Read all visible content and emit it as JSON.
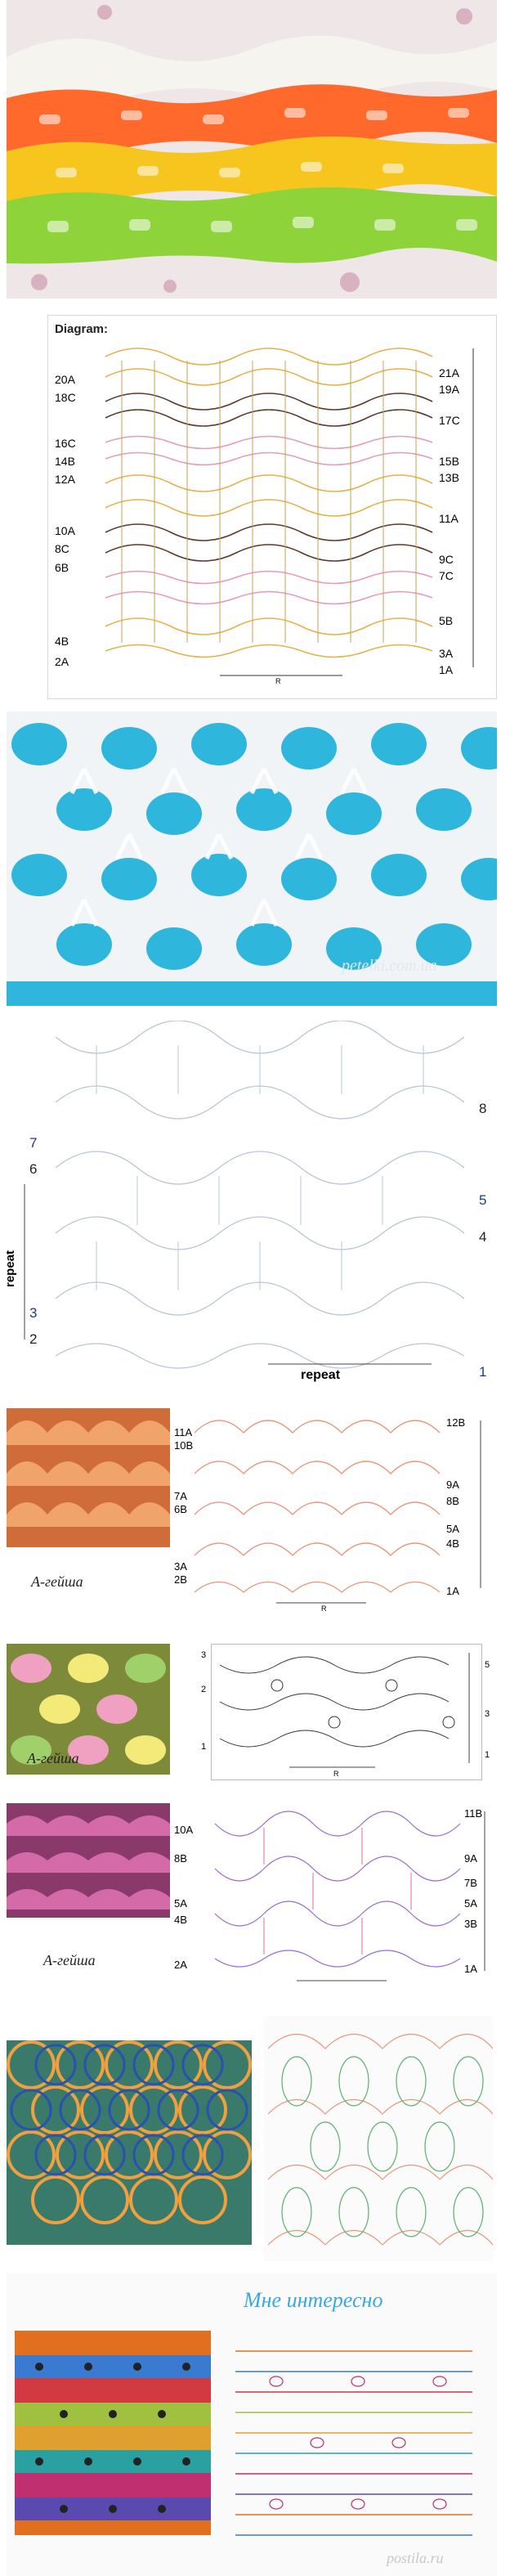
{
  "section2": {
    "title": "Diagram:",
    "left_labels": [
      "20A",
      "18C",
      "16C",
      "14B",
      "12A",
      "10A",
      "8C",
      "6B",
      "4B",
      "2A"
    ],
    "right_labels": [
      "21A",
      "19A",
      "17C",
      "15B",
      "13B",
      "11A",
      "9C",
      "7C",
      "5B",
      "3A",
      "1A"
    ],
    "repeat_mark": "R",
    "colors": {
      "yellow": "#e6b14a",
      "pink": "#e69ab8",
      "brown": "#5a3a2a"
    }
  },
  "section3": {
    "watermark": "petelki.com.ua"
  },
  "section4": {
    "left_labels": [
      "7",
      "6",
      "3",
      "2"
    ],
    "right_labels": [
      "8",
      "5",
      "4",
      "1"
    ],
    "side_label": "repeat",
    "bottom_label": "repeat"
  },
  "section5": {
    "caption": "A-гейша",
    "left_labels": [
      "11A",
      "10B",
      "7A",
      "6B",
      "3A",
      "2B"
    ],
    "right_labels": [
      "12B",
      "9A",
      "8B",
      "5A",
      "4B",
      "1A"
    ],
    "repeat_mark": "R"
  },
  "section6": {
    "caption": "A-гейша",
    "left_labels": [
      "3",
      "2",
      "1"
    ],
    "right_labels": [
      "5",
      "3",
      "1"
    ],
    "repeat_mark": "R"
  },
  "section7": {
    "caption": "A-гейша",
    "left_labels": [
      "10A",
      "8B",
      "5A",
      "4B",
      "2A"
    ],
    "right_labels": [
      "11B",
      "9A",
      "7B",
      "5A",
      "3B",
      "1A"
    ],
    "repeat_mark": "R"
  },
  "section9": {
    "title": "Мне интересно",
    "watermark": "postila.ru"
  },
  "icons": {
    "section1": "crochet-photo-icon",
    "section3": "crochet-photo-icon"
  }
}
